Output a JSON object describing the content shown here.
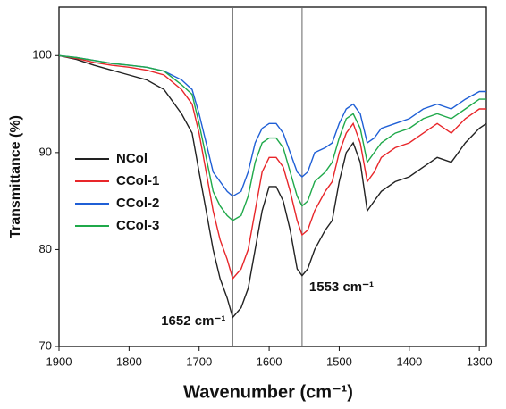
{
  "chart_data": {
    "type": "line",
    "x_label": "Wavenumber (cm⁻¹)",
    "y_label": "Transmittance (%)",
    "xlim": [
      1900,
      1290
    ],
    "xticks": [
      1900,
      1800,
      1700,
      1600,
      1500,
      1400,
      1300
    ],
    "ylim": [
      70,
      105
    ],
    "yticks": [
      70,
      80,
      90,
      100
    ],
    "legend": "center left",
    "x": [
      1900,
      1875,
      1850,
      1825,
      1800,
      1775,
      1750,
      1725,
      1710,
      1700,
      1690,
      1680,
      1670,
      1660,
      1652,
      1640,
      1630,
      1620,
      1610,
      1600,
      1590,
      1580,
      1570,
      1560,
      1553,
      1545,
      1535,
      1520,
      1510,
      1500,
      1490,
      1480,
      1470,
      1460,
      1450,
      1440,
      1420,
      1400,
      1380,
      1360,
      1340,
      1320,
      1300,
      1290
    ],
    "series": [
      {
        "name": "NCol",
        "color": "#222222",
        "values": [
          100,
          99.6,
          99,
          98.5,
          98,
          97.5,
          96.5,
          94,
          92,
          88,
          84,
          80,
          77,
          75,
          73,
          74,
          76,
          80,
          84,
          86.5,
          86.5,
          85,
          82,
          78,
          77.3,
          78,
          80,
          82,
          83,
          87,
          90,
          91,
          89,
          84,
          85,
          86,
          87,
          87.5,
          88.5,
          89.5,
          89,
          91,
          92.5,
          93
        ]
      },
      {
        "name": "CCol-1",
        "color": "#e8262a",
        "values": [
          100,
          99.7,
          99.3,
          99,
          98.8,
          98.5,
          98,
          96.5,
          95,
          92,
          88,
          84,
          81,
          79,
          77,
          78,
          80,
          84,
          88,
          89.5,
          89.5,
          88.5,
          86,
          83,
          81.5,
          82,
          84,
          86,
          87,
          90,
          92,
          93,
          91,
          87,
          88,
          89.5,
          90.5,
          91,
          92,
          93,
          92,
          93.5,
          94.5,
          94.5
        ]
      },
      {
        "name": "CCol-2",
        "color": "#1f5fd6",
        "values": [
          100,
          99.8,
          99.5,
          99.2,
          99,
          98.8,
          98.4,
          97.5,
          96.5,
          94,
          91,
          88,
          87,
          86,
          85.5,
          86,
          88,
          91,
          92.5,
          93,
          93,
          92,
          90,
          88,
          87.5,
          88,
          90,
          90.5,
          91,
          93,
          94.5,
          95,
          94,
          91,
          91.5,
          92.5,
          93,
          93.5,
          94.5,
          95,
          94.5,
          95.5,
          96.3,
          96.3
        ]
      },
      {
        "name": "CCol-3",
        "color": "#1fa94a",
        "values": [
          100,
          99.8,
          99.5,
          99.2,
          99,
          98.8,
          98.4,
          97,
          96,
          93,
          89.5,
          86,
          84.5,
          83.5,
          83,
          83.5,
          85.5,
          89,
          91,
          91.5,
          91.5,
          90.5,
          88,
          85.5,
          84.5,
          85,
          87,
          88,
          89,
          91.5,
          93.5,
          94,
          92.5,
          89,
          90,
          91,
          92,
          92.5,
          93.5,
          94,
          93.5,
          94.5,
          95.5,
          95.5
        ]
      }
    ],
    "annotations": [
      {
        "text": "1652 cm⁻¹",
        "x": 1652
      },
      {
        "text": "1553 cm⁻¹",
        "x": 1553
      }
    ]
  }
}
